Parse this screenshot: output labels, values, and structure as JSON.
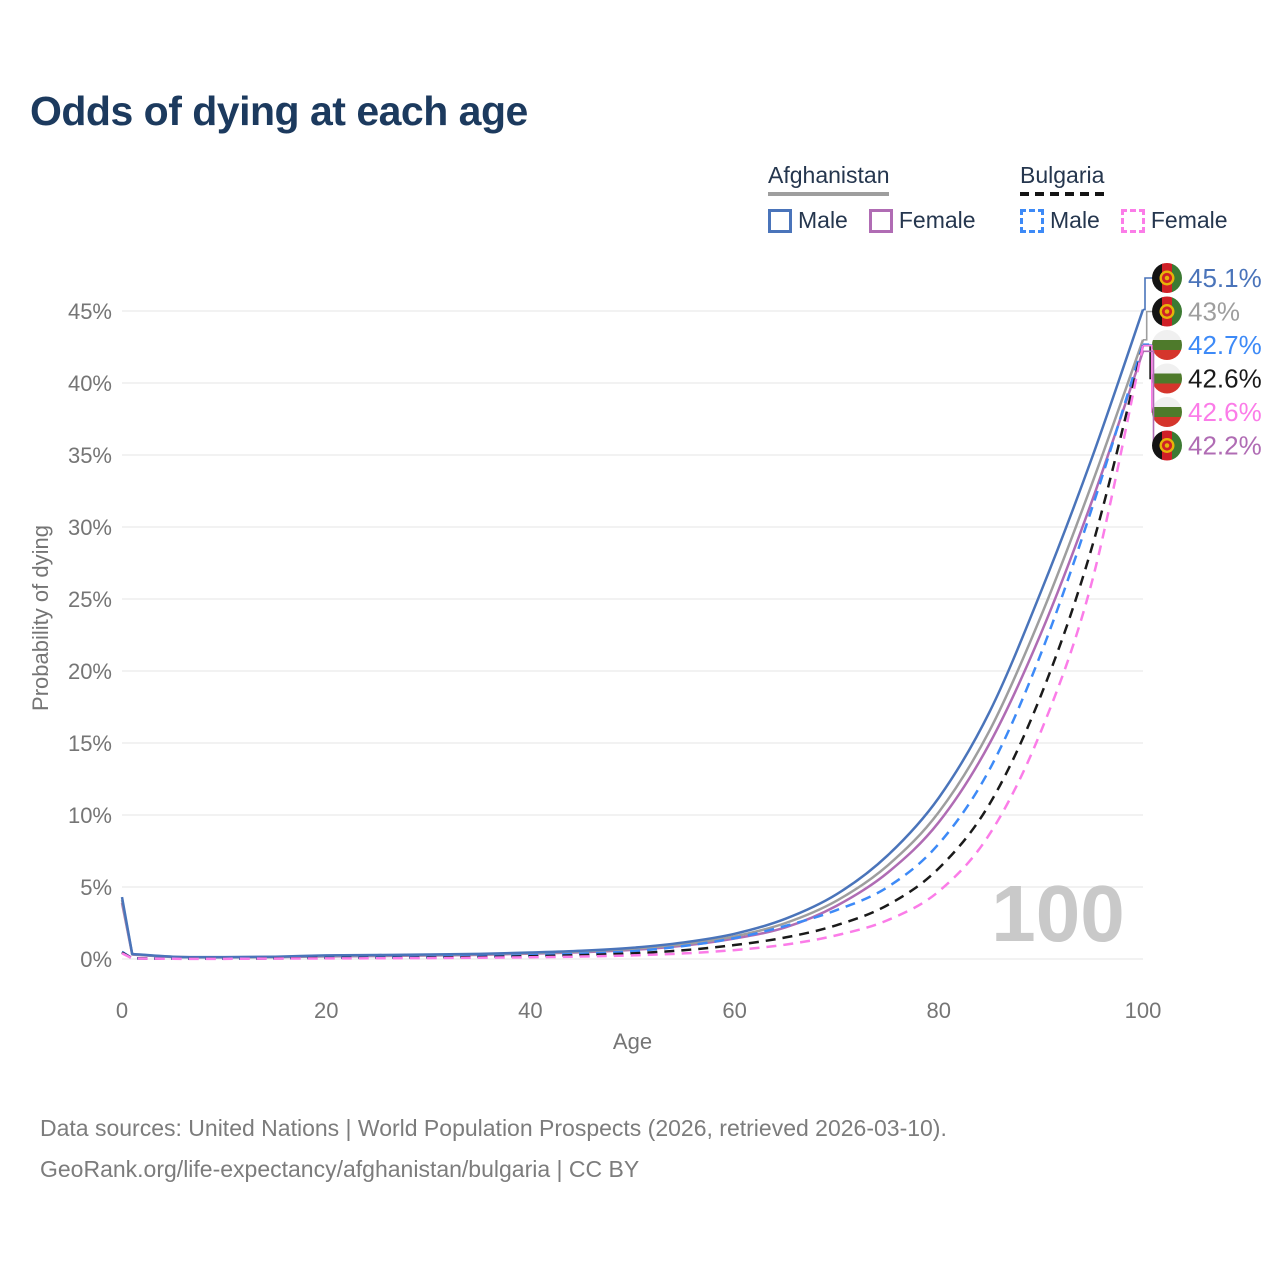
{
  "header": {
    "title": "Odds of dying at each age"
  },
  "legend": {
    "groups": [
      {
        "label": "Afghanistan",
        "line_style": "solid",
        "underline_color": "#9e9e9e",
        "items": [
          {
            "label": "Male",
            "color": "#4a74ba",
            "dash": false
          },
          {
            "label": "Female",
            "color": "#b06cb4",
            "dash": false
          }
        ]
      },
      {
        "label": "Bulgaria",
        "line_style": "dashed",
        "underline_color": "#141414",
        "items": [
          {
            "label": "Male",
            "color": "#3d8af7",
            "dash": true
          },
          {
            "label": "Female",
            "color": "#fb7ce8",
            "dash": true
          }
        ]
      }
    ]
  },
  "chart_data": {
    "type": "line",
    "title": "Odds of dying at each age",
    "xlabel": "Age",
    "ylabel": "Probability of dying",
    "xlim": [
      0,
      100
    ],
    "ylim_pct": [
      0,
      47
    ],
    "x_ticks": [
      0,
      20,
      40,
      60,
      80,
      100
    ],
    "y_ticks_pct": [
      0,
      5,
      10,
      15,
      20,
      25,
      30,
      35,
      40,
      45
    ],
    "grid": "horizontal",
    "legend_position": "top-right",
    "watermark": "100",
    "ages": [
      0,
      1,
      5,
      10,
      15,
      20,
      25,
      30,
      35,
      40,
      45,
      50,
      55,
      60,
      65,
      70,
      75,
      80,
      85,
      90,
      95,
      100
    ],
    "series": [
      {
        "name": "Afghanistan Male",
        "country": "Afghanistan",
        "sex": "male",
        "flag": "afghanistan",
        "color": "#4a74ba",
        "dash": false,
        "end_label": "45.1%",
        "values_pct": [
          4.3,
          0.35,
          0.16,
          0.13,
          0.16,
          0.25,
          0.28,
          0.31,
          0.36,
          0.45,
          0.57,
          0.78,
          1.15,
          1.75,
          2.8,
          4.5,
          7.2,
          11.2,
          17.2,
          25.5,
          34.8,
          45.1
        ]
      },
      {
        "name": "Afghanistan Both sexes",
        "country": "Afghanistan",
        "sex": "both",
        "flag": "afghanistan",
        "color": "#9e9e9e",
        "dash": false,
        "end_label": "43%",
        "values_pct": [
          4.1,
          0.33,
          0.15,
          0.12,
          0.14,
          0.21,
          0.24,
          0.27,
          0.32,
          0.41,
          0.52,
          0.7,
          1.02,
          1.57,
          2.5,
          4.05,
          6.5,
          10.2,
          15.9,
          23.8,
          33.0,
          43.0
        ]
      },
      {
        "name": "Bulgaria Male",
        "country": "Bulgaria",
        "sex": "male",
        "flag": "bulgaria",
        "color": "#3d8af7",
        "dash": true,
        "end_label": "42.7%",
        "values_pct": [
          0.5,
          0.05,
          0.02,
          0.02,
          0.05,
          0.09,
          0.11,
          0.14,
          0.19,
          0.26,
          0.37,
          0.54,
          0.9,
          1.45,
          2.3,
          3.4,
          5.0,
          8.0,
          13.2,
          21.2,
          31.3,
          42.7
        ]
      },
      {
        "name": "Bulgaria Both sexes",
        "country": "Bulgaria",
        "sex": "both",
        "flag": "bulgaria",
        "color": "#1a1a1a",
        "dash": true,
        "end_label": "42.6%",
        "values_pct": [
          0.45,
          0.045,
          0.018,
          0.016,
          0.04,
          0.07,
          0.08,
          0.1,
          0.14,
          0.19,
          0.27,
          0.39,
          0.61,
          0.97,
          1.5,
          2.35,
          3.75,
          6.3,
          10.8,
          18.3,
          28.6,
          42.6
        ]
      },
      {
        "name": "Bulgaria Female",
        "country": "Bulgaria",
        "sex": "female",
        "flag": "bulgaria",
        "color": "#fb7ce8",
        "dash": true,
        "end_label": "42.6%",
        "values_pct": [
          0.4,
          0.04,
          0.015,
          0.013,
          0.03,
          0.04,
          0.05,
          0.065,
          0.09,
          0.12,
          0.17,
          0.25,
          0.39,
          0.62,
          1.0,
          1.65,
          2.7,
          4.7,
          8.7,
          15.8,
          26.2,
          42.6
        ]
      },
      {
        "name": "Afghanistan Female",
        "country": "Afghanistan",
        "sex": "female",
        "flag": "afghanistan",
        "color": "#b06cb4",
        "dash": false,
        "end_label": "42.2%",
        "values_pct": [
          3.9,
          0.31,
          0.14,
          0.11,
          0.13,
          0.18,
          0.21,
          0.24,
          0.29,
          0.37,
          0.47,
          0.63,
          0.93,
          1.42,
          2.2,
          3.7,
          6.0,
          9.5,
          15.0,
          22.6,
          31.8,
          42.2
        ]
      }
    ]
  },
  "icons": {
    "flags": {
      "afghanistan": {
        "black": "#141414",
        "red": "#cf2027",
        "green": "#3c7a33",
        "gold": "#e7b408"
      },
      "bulgaria": {
        "white": "#f0f0f0",
        "green": "#4e7a2b",
        "red": "#d5352c"
      }
    }
  },
  "colors": {
    "title": "#1c3a5e",
    "legend_text": "#25364e",
    "axis_text": "#757575",
    "grid": "#e9e9e9",
    "watermark": "#c9c9c9",
    "footer_text": "#7c7c7c"
  },
  "footer": {
    "line1": "Data sources: United Nations | World Population Prospects (2026, retrieved 2026-03-10).",
    "line2": "GeoRank.org/life-expectancy/afghanistan/bulgaria | CC BY"
  }
}
